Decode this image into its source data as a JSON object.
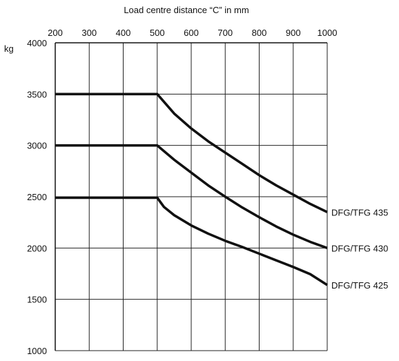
{
  "chart_data": {
    "type": "line",
    "title": "Load centre distance “C” in mm",
    "xlabel": "Load centre distance “C” in mm",
    "ylabel": "kg",
    "xlim": [
      200,
      1000
    ],
    "ylim": [
      1000,
      4000
    ],
    "x_ticks": [
      200,
      300,
      400,
      500,
      600,
      700,
      800,
      900,
      1000
    ],
    "y_ticks": [
      4000,
      3500,
      3000,
      2500,
      2000,
      1500,
      1000
    ],
    "x_axis_position": "top",
    "grid": true,
    "series": [
      {
        "name": "DFG/TFG 435",
        "x": [
          200,
          500,
          550,
          600,
          650,
          700,
          750,
          800,
          850,
          900,
          950,
          1000
        ],
        "y": [
          3500,
          3500,
          3310,
          3165,
          3040,
          2930,
          2820,
          2710,
          2610,
          2520,
          2430,
          2350
        ]
      },
      {
        "name": "DFG/TFG 430",
        "x": [
          200,
          500,
          550,
          600,
          650,
          700,
          750,
          800,
          850,
          900,
          950,
          1000
        ],
        "y": [
          3000,
          3000,
          2860,
          2735,
          2610,
          2500,
          2395,
          2300,
          2210,
          2130,
          2060,
          2000
        ]
      },
      {
        "name": "DFG/TFG 425",
        "x": [
          200,
          500,
          520,
          550,
          600,
          650,
          700,
          750,
          800,
          850,
          900,
          950,
          1000
        ],
        "y": [
          2490,
          2490,
          2400,
          2320,
          2220,
          2140,
          2070,
          2010,
          1945,
          1880,
          1815,
          1745,
          1640
        ]
      }
    ]
  }
}
